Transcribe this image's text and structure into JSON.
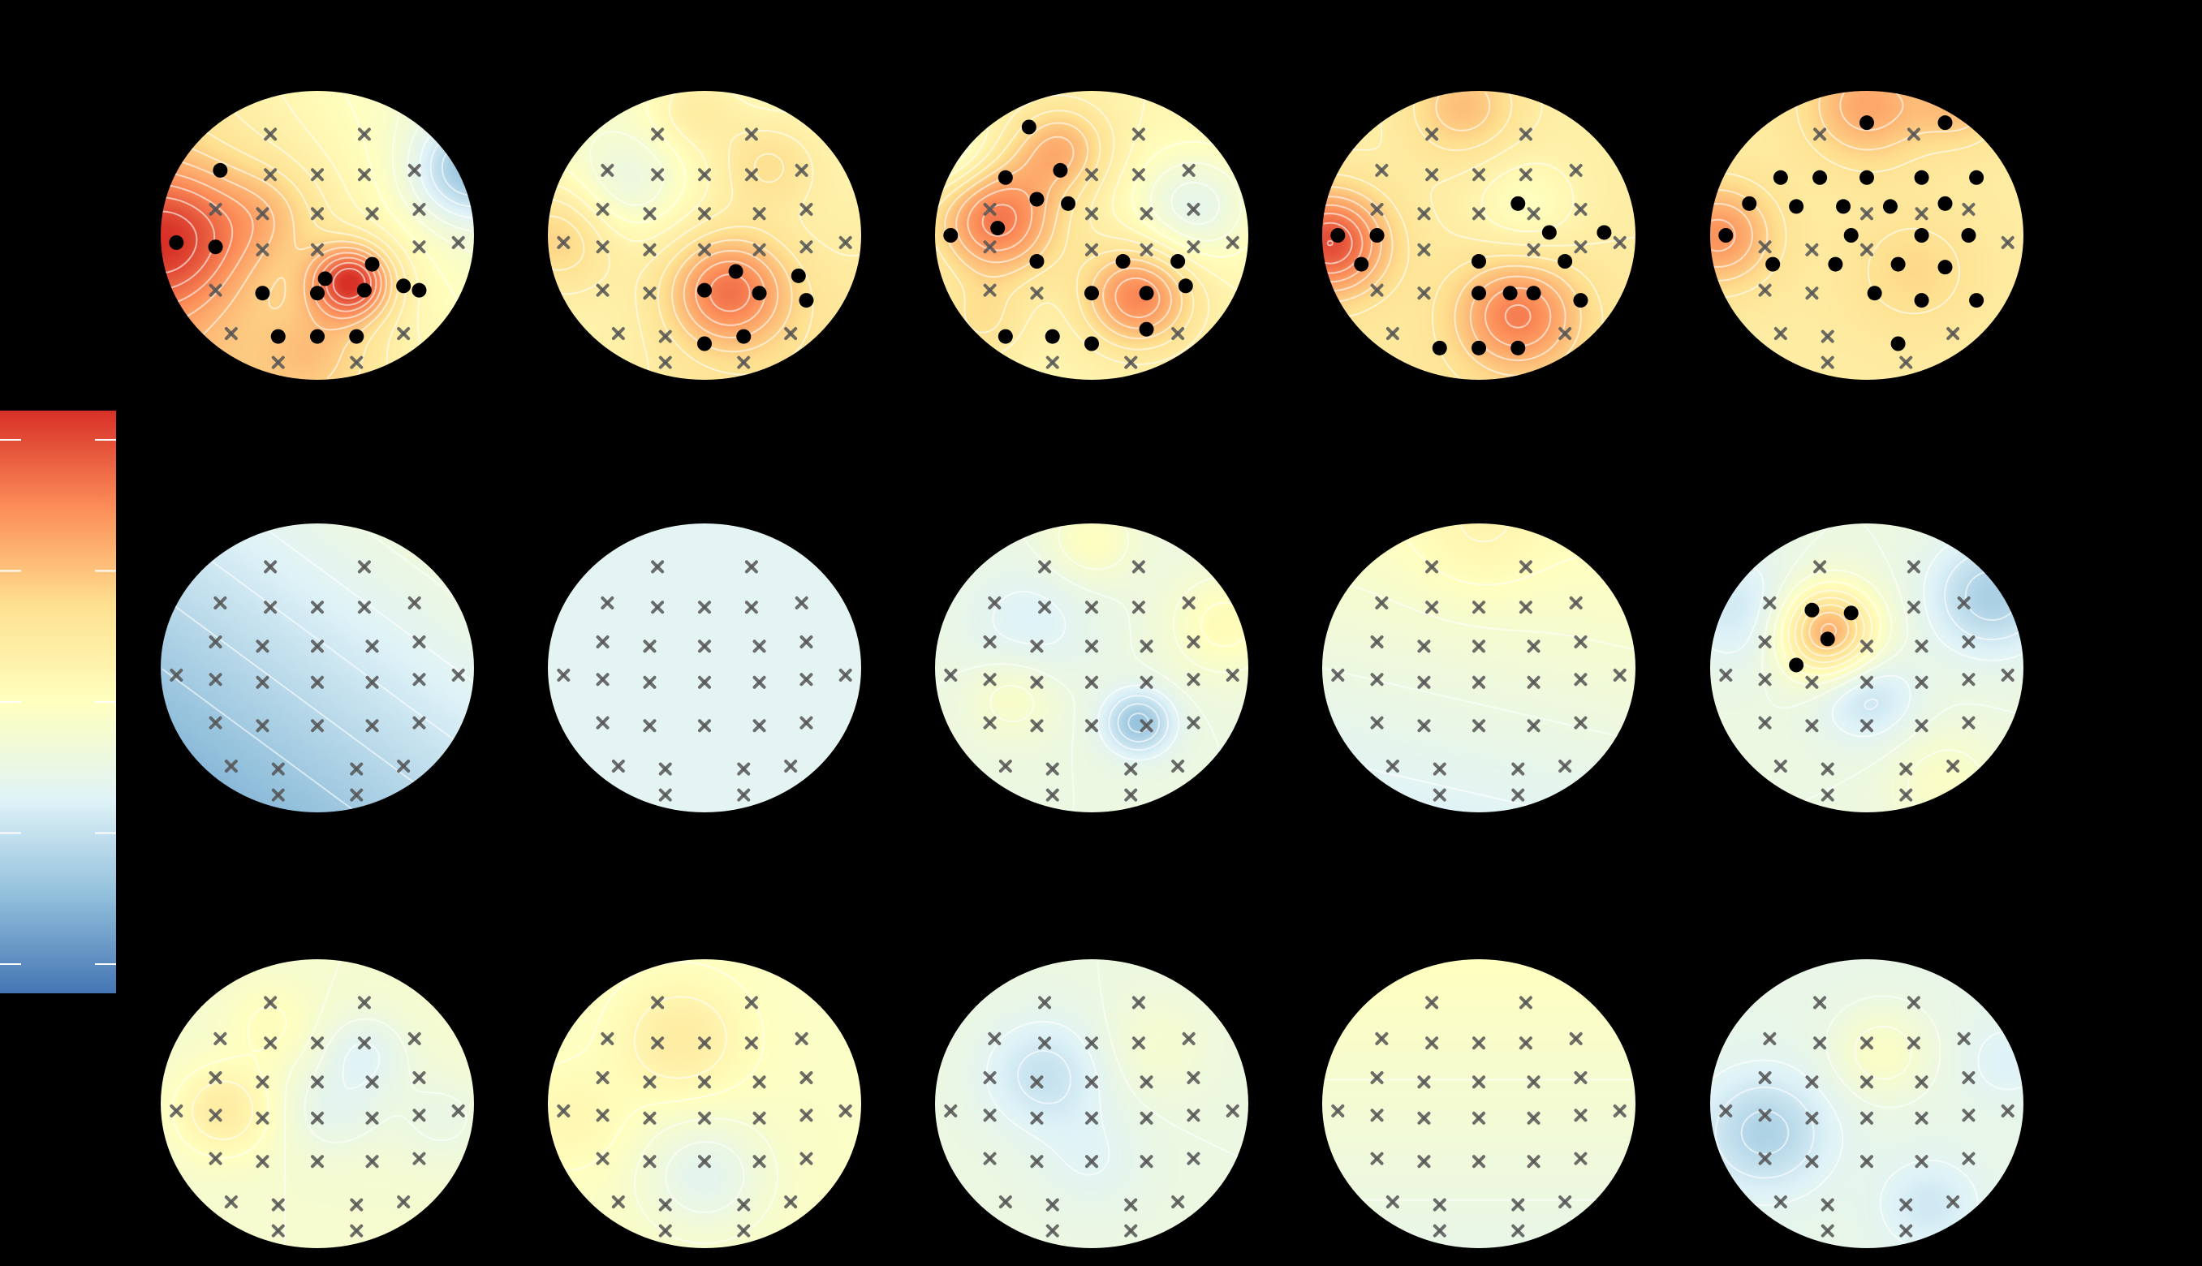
{
  "figure": {
    "background": "#000000",
    "topo_rows": 3,
    "topo_cols": 5
  },
  "colormap": {
    "name": "RdYlBu_r",
    "stops": [
      "#4575b4",
      "#91bfdb",
      "#e0f3f8",
      "#ffffbf",
      "#fee090",
      "#fc8d59",
      "#d73027"
    ]
  },
  "chart_data": {
    "type": "heatmap",
    "title": "",
    "colorbar_ticks": 5,
    "electrodes": [
      [
        0.3,
        -0.7
      ],
      [
        -0.3,
        -0.7
      ],
      [
        0.62,
        -0.45
      ],
      [
        0.3,
        -0.42
      ],
      [
        0.0,
        -0.42
      ],
      [
        -0.3,
        -0.42
      ],
      [
        -0.62,
        -0.45
      ],
      [
        0.65,
        -0.18
      ],
      [
        0.35,
        -0.15
      ],
      [
        0.0,
        -0.15
      ],
      [
        -0.35,
        -0.15
      ],
      [
        -0.65,
        -0.18
      ],
      [
        0.9,
        0.05
      ],
      [
        0.65,
        0.08
      ],
      [
        0.35,
        0.1
      ],
      [
        0.0,
        0.1
      ],
      [
        -0.35,
        0.1
      ],
      [
        -0.65,
        0.08
      ],
      [
        -0.9,
        0.05
      ],
      [
        0.65,
        0.38
      ],
      [
        0.35,
        0.4
      ],
      [
        0.0,
        0.4
      ],
      [
        -0.35,
        0.4
      ],
      [
        -0.65,
        0.38
      ],
      [
        0.55,
        0.68
      ],
      [
        0.25,
        0.7
      ],
      [
        -0.25,
        0.7
      ],
      [
        -0.55,
        0.68
      ],
      [
        0.25,
        0.88
      ],
      [
        -0.25,
        0.88
      ]
    ],
    "maps": [
      {
        "base": 0.58,
        "gradient": [
          -0.12,
          0.06
        ],
        "blobs": [
          [
            0.22,
            0.32,
            0.42,
            0.18
          ],
          [
            -0.95,
            0.02,
            0.3,
            0.35
          ],
          [
            0.95,
            -0.45,
            -0.25,
            0.25
          ],
          [
            -0.3,
            -0.15,
            0.1,
            0.25
          ],
          [
            0.0,
            0.78,
            0.1,
            0.25
          ]
        ],
        "significant": [
          [
            0.3,
            0.38
          ],
          [
            -0.62,
            -0.45
          ],
          [
            -0.9,
            0.05
          ],
          [
            -0.65,
            0.08
          ],
          [
            -0.35,
            0.4
          ],
          [
            0.0,
            0.4
          ],
          [
            0.35,
            0.2
          ],
          [
            0.55,
            0.35
          ],
          [
            0.65,
            0.38
          ],
          [
            -0.25,
            0.7
          ],
          [
            0.0,
            0.7
          ],
          [
            0.25,
            0.7
          ],
          [
            0.05,
            0.3
          ]
        ]
      },
      {
        "base": 0.55,
        "gradient": [
          0.04,
          0.06
        ],
        "blobs": [
          [
            0.15,
            0.38,
            0.3,
            0.28
          ],
          [
            -0.5,
            -0.35,
            -0.12,
            0.25
          ],
          [
            0.4,
            -0.5,
            0.12,
            0.22
          ],
          [
            -0.95,
            0.0,
            0.18,
            0.28
          ],
          [
            -0.05,
            -0.88,
            0.1,
            0.2
          ]
        ],
        "significant": [
          [
            0.2,
            0.25
          ],
          [
            0.6,
            0.28
          ],
          [
            0.0,
            0.38
          ],
          [
            0.35,
            0.4
          ],
          [
            0.65,
            0.45
          ],
          [
            0.25,
            0.7
          ],
          [
            0.0,
            0.75
          ]
        ]
      },
      {
        "base": 0.55,
        "gradient": [
          0.0,
          0.0
        ],
        "blobs": [
          [
            -0.6,
            -0.1,
            0.32,
            0.28
          ],
          [
            0.3,
            0.42,
            0.3,
            0.25
          ],
          [
            -0.2,
            -0.6,
            0.2,
            0.22
          ],
          [
            0.65,
            -0.2,
            -0.18,
            0.28
          ],
          [
            -0.95,
            -0.6,
            -0.15,
            0.2
          ],
          [
            -0.7,
            0.6,
            0.1,
            0.2
          ]
        ],
        "significant": [
          [
            -0.4,
            -0.75
          ],
          [
            -0.2,
            -0.45
          ],
          [
            -0.55,
            -0.4
          ],
          [
            -0.35,
            -0.25
          ],
          [
            -0.15,
            -0.22
          ],
          [
            -0.6,
            -0.05
          ],
          [
            -0.9,
            0.0
          ],
          [
            -0.35,
            0.18
          ],
          [
            0.2,
            0.18
          ],
          [
            0.55,
            0.18
          ],
          [
            0.0,
            0.4
          ],
          [
            0.35,
            0.4
          ],
          [
            0.6,
            0.35
          ],
          [
            -0.55,
            0.7
          ],
          [
            -0.25,
            0.7
          ],
          [
            0.35,
            0.65
          ],
          [
            0.0,
            0.75
          ]
        ]
      },
      {
        "base": 0.6,
        "gradient": [
          0.0,
          0.02
        ],
        "blobs": [
          [
            -0.95,
            0.05,
            0.35,
            0.25
          ],
          [
            0.25,
            0.55,
            0.25,
            0.28
          ],
          [
            -0.1,
            -0.9,
            0.15,
            0.25
          ],
          [
            0.3,
            -0.2,
            -0.1,
            0.25
          ]
        ],
        "significant": [
          [
            -0.9,
            0.0
          ],
          [
            -0.65,
            0.0
          ],
          [
            -0.75,
            0.2
          ],
          [
            0.25,
            -0.22
          ],
          [
            0.45,
            -0.02
          ],
          [
            0.8,
            -0.02
          ],
          [
            0.55,
            0.18
          ],
          [
            0.0,
            0.18
          ],
          [
            0.2,
            0.4
          ],
          [
            0.35,
            0.4
          ],
          [
            0.65,
            0.45
          ],
          [
            0.0,
            0.4
          ],
          [
            -0.25,
            0.78
          ],
          [
            0.0,
            0.78
          ],
          [
            0.25,
            0.78
          ]
        ]
      },
      {
        "base": 0.6,
        "gradient": [
          0.0,
          0.0
        ],
        "blobs": [
          [
            -0.95,
            0.0,
            0.22,
            0.25
          ],
          [
            0.0,
            -0.9,
            0.18,
            0.28
          ],
          [
            0.6,
            -0.9,
            0.12,
            0.2
          ],
          [
            0.3,
            0.25,
            0.08,
            0.3
          ]
        ],
        "significant": [
          [
            0.0,
            -0.78
          ],
          [
            0.5,
            -0.78
          ],
          [
            -0.55,
            -0.4
          ],
          [
            -0.3,
            -0.4
          ],
          [
            0.0,
            -0.4
          ],
          [
            0.35,
            -0.4
          ],
          [
            0.7,
            -0.4
          ],
          [
            -0.75,
            -0.22
          ],
          [
            -0.45,
            -0.2
          ],
          [
            -0.15,
            -0.2
          ],
          [
            0.15,
            -0.2
          ],
          [
            0.5,
            -0.22
          ],
          [
            -0.9,
            0.0
          ],
          [
            -0.1,
            0.0
          ],
          [
            0.35,
            0.0
          ],
          [
            0.65,
            0.0
          ],
          [
            -0.6,
            0.2
          ],
          [
            -0.2,
            0.2
          ],
          [
            0.2,
            0.2
          ],
          [
            0.5,
            0.22
          ],
          [
            0.05,
            0.4
          ],
          [
            0.35,
            0.45
          ],
          [
            0.7,
            0.45
          ],
          [
            0.2,
            0.75
          ]
        ]
      },
      {
        "base": 0.28,
        "gradient": [
          0.08,
          -0.1
        ],
        "blobs": [],
        "significant": []
      },
      {
        "base": 0.35,
        "gradient": [
          0.0,
          0.0
        ],
        "blobs": [],
        "significant": []
      },
      {
        "base": 0.4,
        "gradient": [
          0.0,
          0.0
        ],
        "blobs": [
          [
            0.3,
            0.38,
            -0.22,
            0.15
          ],
          [
            0.85,
            -0.3,
            0.12,
            0.25
          ],
          [
            -0.4,
            -0.3,
            -0.07,
            0.3
          ],
          [
            0.0,
            -0.88,
            0.1,
            0.2
          ],
          [
            -0.5,
            0.2,
            0.08,
            0.2
          ]
        ],
        "significant": []
      },
      {
        "base": 0.42,
        "gradient": [
          0.02,
          -0.08
        ],
        "blobs": [
          [
            0.0,
            -0.9,
            0.06,
            0.3
          ]
        ],
        "significant": []
      },
      {
        "base": 0.4,
        "gradient": [
          0.0,
          0.0
        ],
        "blobs": [
          [
            -0.25,
            -0.25,
            0.38,
            0.22
          ],
          [
            0.8,
            -0.5,
            -0.18,
            0.28
          ],
          [
            0.0,
            0.2,
            -0.12,
            0.22
          ],
          [
            -0.8,
            -0.4,
            -0.1,
            0.28
          ],
          [
            0.5,
            0.8,
            0.08,
            0.25
          ]
        ],
        "significant": [
          [
            -0.35,
            -0.4
          ],
          [
            -0.1,
            -0.38
          ],
          [
            -0.25,
            -0.2
          ],
          [
            -0.45,
            -0.02
          ]
        ]
      },
      {
        "base": 0.45,
        "gradient": [
          0.0,
          0.0
        ],
        "blobs": [
          [
            -0.6,
            0.05,
            0.15,
            0.22
          ],
          [
            0.3,
            -0.35,
            -0.1,
            0.2
          ],
          [
            0.1,
            0.05,
            -0.08,
            0.22
          ],
          [
            -0.3,
            -0.55,
            0.06,
            0.2
          ],
          [
            0.8,
            0.1,
            -0.06,
            0.25
          ]
        ],
        "significant": []
      },
      {
        "base": 0.48,
        "gradient": [
          0.0,
          0.0
        ],
        "blobs": [
          [
            -0.15,
            -0.45,
            0.12,
            0.28
          ],
          [
            0.0,
            0.5,
            -0.12,
            0.28
          ],
          [
            -0.85,
            0.1,
            0.06,
            0.25
          ]
        ],
        "significant": []
      },
      {
        "base": 0.4,
        "gradient": [
          0.0,
          0.0
        ],
        "blobs": [
          [
            -0.3,
            -0.2,
            -0.12,
            0.28
          ],
          [
            0.4,
            -0.4,
            0.05,
            0.25
          ],
          [
            0.0,
            0.4,
            -0.05,
            0.25
          ]
        ],
        "significant": []
      },
      {
        "base": 0.44,
        "gradient": [
          0.0,
          -0.06
        ],
        "blobs": [],
        "significant": []
      },
      {
        "base": 0.38,
        "gradient": [
          0.0,
          0.0
        ],
        "blobs": [
          [
            -0.65,
            0.2,
            -0.15,
            0.28
          ],
          [
            0.1,
            -0.35,
            0.1,
            0.22
          ],
          [
            0.4,
            0.7,
            -0.08,
            0.22
          ],
          [
            0.9,
            -0.3,
            -0.05,
            0.2
          ]
        ],
        "significant": []
      }
    ]
  }
}
